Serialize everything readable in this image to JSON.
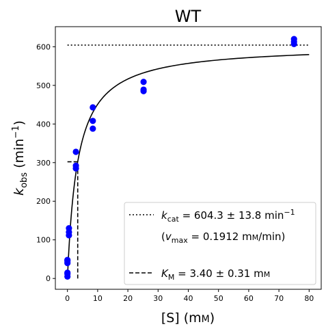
{
  "chart_data": {
    "type": "scatter",
    "title": "WT",
    "xlabel": {
      "main": "[S] (m",
      "small": "M",
      "close": ")"
    },
    "ylabel": {
      "k": "k",
      "sub": "obs",
      "open": " (min",
      "sup": "−1",
      "close": ")"
    },
    "xlim": [
      -4,
      84
    ],
    "ylim": [
      -28,
      652
    ],
    "xticks": [
      0,
      10,
      20,
      30,
      40,
      50,
      60,
      70,
      80
    ],
    "yticks": [
      0,
      100,
      200,
      300,
      400,
      500,
      600
    ],
    "grid": false,
    "legend_position": "lower-right",
    "points": {
      "color": "#0000ff",
      "x": [
        0,
        0,
        0,
        0,
        0,
        0,
        0.5,
        0.5,
        0.5,
        2.8,
        2.8,
        2.8,
        8.4,
        8.4,
        8.4,
        25.2,
        25.2,
        25.2,
        75,
        75,
        75
      ],
      "y": [
        5,
        15,
        40,
        45,
        48,
        12,
        112,
        120,
        130,
        328,
        285,
        292,
        443,
        408,
        388,
        509,
        489,
        485,
        620,
        613,
        607
      ]
    },
    "fit": {
      "kcat": 604.3,
      "KM": 3.4,
      "x_start": 0.05,
      "x_end": 80
    },
    "kcat_line": {
      "y": 604.3,
      "x_start": 0,
      "x_end": 80
    },
    "KM_line": {
      "x": 3.4,
      "y": 302.15
    },
    "legend": {
      "kcat_k": "k",
      "kcat_sub": "cat",
      "kcat_value": " = 604.3 ± 13.8 min",
      "kcat_sup": "−1",
      "vmax_open": "(",
      "vmax_v": "v",
      "vmax_sub": "max",
      "vmax_value": " = 0.1912 m",
      "vmax_small": "M",
      "vmax_close": "/min)",
      "km_k": "K",
      "km_sub": "M",
      "km_value": " = 3.40 ± 0.31 m",
      "km_small": "M"
    }
  }
}
